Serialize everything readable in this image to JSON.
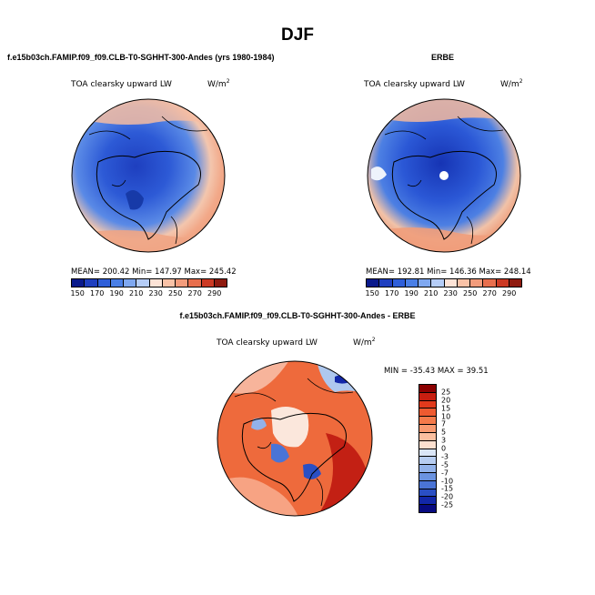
{
  "title": "DJF",
  "palette_base": [
    "#0a1a8c",
    "#1f3fbf",
    "#2f5fd9",
    "#4a7fe6",
    "#7fa8f0",
    "#b5cdf7",
    "#fde3d6",
    "#f9c2a7",
    "#f39c7c",
    "#e86f4e",
    "#cc3a24",
    "#8f1a0f"
  ],
  "panels": {
    "model": {
      "title": "f.e15b03ch.FAMIP.f09_f09.CLB-T0-SGHHT-300-Andes (yrs 1980-1984)",
      "variable": "TOA clearsky upward LW",
      "units_base": "W/m",
      "units_exp": "2",
      "stats": "MEAN= 200.42   Min= 147.97   Max= 245.42",
      "colorbar_labels": [
        "150",
        "170",
        "190",
        "210",
        "230",
        "250",
        "270",
        "290"
      ]
    },
    "obs": {
      "title": "ERBE",
      "variable": "TOA clearsky upward LW",
      "units_base": "W/m",
      "units_exp": "2",
      "stats": "MEAN= 192.81   Min= 146.36   Max= 248.14",
      "colorbar_labels": [
        "150",
        "170",
        "190",
        "210",
        "230",
        "250",
        "270",
        "290"
      ]
    },
    "diff": {
      "title": "f.e15b03ch.FAMIP.f09_f09.CLB-T0-SGHHT-300-Andes - ERBE",
      "variable": "TOA clearsky upward LW",
      "units_base": "W/m",
      "units_exp": "2",
      "stats": "MIN = -35.43 MAX =  39.51",
      "colorbar_labels": [
        "25",
        "20",
        "15",
        "10",
        "7",
        "5",
        "3",
        "0",
        "-3",
        "-5",
        "-7",
        "-10",
        "-15",
        "-20",
        "-25"
      ],
      "palette": [
        "#8b0000",
        "#c81e10",
        "#e23a1c",
        "#ee5a30",
        "#f47a4a",
        "#f89a70",
        "#fbbf9f",
        "#fde0cf",
        "#dbe6f7",
        "#b7cdf1",
        "#92b2ea",
        "#6b93e0",
        "#4a74d6",
        "#2a4fc4",
        "#1227a8",
        "#070a80"
      ]
    }
  },
  "chart_data": [
    {
      "type": "heatmap",
      "title": "f.e15b03ch.FAMIP.f09_f09.CLB-T0-SGHHT-300-Andes (yrs 1980-1984)",
      "projection": "north polar stereographic",
      "variable": "TOA clearsky upward LW",
      "units": "W/m2",
      "mean": 200.42,
      "min": 147.97,
      "max": 245.42,
      "contour_levels": [
        150,
        160,
        170,
        180,
        190,
        200,
        210,
        220,
        230,
        240,
        250,
        260,
        270,
        280,
        290
      ]
    },
    {
      "type": "heatmap",
      "title": "ERBE",
      "projection": "north polar stereographic",
      "variable": "TOA clearsky upward LW",
      "units": "W/m2",
      "mean": 192.81,
      "min": 146.36,
      "max": 248.14,
      "contour_levels": [
        150,
        160,
        170,
        180,
        190,
        200,
        210,
        220,
        230,
        240,
        250,
        260,
        270,
        280,
        290
      ]
    },
    {
      "type": "heatmap",
      "title": "f.e15b03ch.FAMIP.f09_f09.CLB-T0-SGHHT-300-Andes - ERBE",
      "projection": "north polar stereographic",
      "variable": "TOA clearsky upward LW",
      "units": "W/m2",
      "min": -35.43,
      "max": 39.51,
      "contour_levels": [
        -25,
        -20,
        -15,
        -10,
        -7,
        -5,
        -3,
        0,
        3,
        5,
        7,
        10,
        15,
        20,
        25
      ]
    }
  ]
}
